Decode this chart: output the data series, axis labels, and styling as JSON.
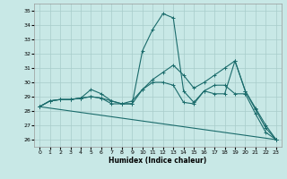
{
  "xlabel": "Humidex (Indice chaleur)",
  "xlim": [
    -0.5,
    23.5
  ],
  "ylim": [
    25.5,
    35.5
  ],
  "yticks": [
    26,
    27,
    28,
    29,
    30,
    31,
    32,
    33,
    34,
    35
  ],
  "xticks": [
    0,
    1,
    2,
    3,
    4,
    5,
    6,
    7,
    8,
    9,
    10,
    11,
    12,
    13,
    14,
    15,
    16,
    17,
    18,
    19,
    20,
    21,
    22,
    23
  ],
  "bg_color": "#c8e8e6",
  "grid_color": "#a8ccca",
  "line_color": "#1a6b6b",
  "lines": [
    {
      "x": [
        0,
        1,
        2,
        3,
        4,
        5,
        6,
        7,
        8,
        9,
        10,
        11,
        12,
        13,
        14,
        15,
        16,
        17,
        18,
        19,
        20,
        21,
        22,
        23
      ],
      "y": [
        28.3,
        28.7,
        28.8,
        28.8,
        28.9,
        29.5,
        29.2,
        28.7,
        28.5,
        28.5,
        32.2,
        33.7,
        34.8,
        34.5,
        29.4,
        28.6,
        29.4,
        29.2,
        29.2,
        31.5,
        29.4,
        28.1,
        26.8,
        26.0
      ],
      "style": "-"
    },
    {
      "x": [
        0,
        1,
        2,
        3,
        4,
        5,
        6,
        7,
        8,
        9,
        10,
        11,
        12,
        13,
        14,
        15,
        16,
        17,
        18,
        19,
        20,
        21,
        22,
        23
      ],
      "y": [
        28.3,
        28.7,
        28.8,
        28.8,
        28.9,
        29.0,
        28.9,
        28.7,
        28.5,
        28.7,
        29.5,
        30.2,
        30.7,
        31.2,
        30.5,
        29.6,
        30.0,
        30.5,
        31.0,
        31.5,
        29.4,
        28.2,
        27.0,
        26.0
      ],
      "style": "-"
    },
    {
      "x": [
        0,
        23
      ],
      "y": [
        28.3,
        26.0
      ],
      "style": "-"
    },
    {
      "x": [
        0,
        1,
        2,
        3,
        4,
        5,
        6,
        7,
        8,
        9,
        10,
        11,
        12,
        13,
        14,
        15,
        16,
        17,
        18,
        19,
        20,
        21,
        22,
        23
      ],
      "y": [
        28.3,
        28.7,
        28.8,
        28.8,
        28.9,
        29.0,
        28.9,
        28.5,
        28.5,
        28.5,
        29.5,
        30.0,
        30.0,
        29.8,
        28.6,
        28.5,
        29.4,
        29.8,
        29.8,
        29.2,
        29.2,
        27.8,
        26.5,
        26.0
      ],
      "style": "-"
    }
  ]
}
